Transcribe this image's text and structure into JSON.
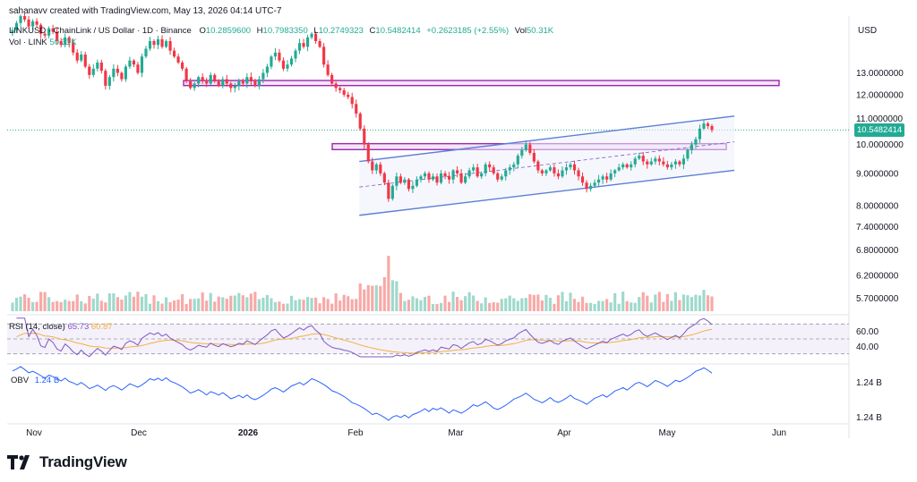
{
  "header": {
    "attribution": "sahanavv created with TradingView.com, May 13, 2026 04:14 UTC-7",
    "symbol": "LINKUSD · ChainLink / US Dollar · 1D · Binance",
    "ohlc": {
      "o_label": "O",
      "o": "10.2859600",
      "h_label": "H",
      "h": "10.7983350",
      "l_label": "L",
      "l": "10.2749323",
      "c_label": "C",
      "c": "10.5482414",
      "change": "+0.2623185 (+2.55%)",
      "vol_label": "Vol",
      "vol": "50.31K"
    },
    "vol_series": "Vol · LINK",
    "vol_series_value": "50.31K"
  },
  "currency": "USD",
  "last_price": "10.5482414",
  "brand": "TradingView",
  "colors": {
    "up": "#22ab94",
    "down": "#f23645",
    "vol_up": "#9fd9cc",
    "vol_down": "#f7a9a7",
    "rsi": "#7e57c2",
    "rsi_ma": "#f5b041",
    "obv": "#2962ff",
    "channel": "#5b7fd6",
    "zone": "#9c27b0"
  },
  "chart_data": {
    "type": "candlestick",
    "x_axis": {
      "ticks": [
        "Nov",
        "Dec",
        "2026",
        "Feb",
        "Mar",
        "Apr",
        "May",
        "Jun"
      ]
    },
    "price_axis": {
      "scale": "log",
      "ticks": [
        "13.0000000",
        "12.0000000",
        "11.0000000",
        "10.0000000",
        "9.0000000",
        "8.0000000",
        "7.4000000",
        "6.8000000",
        "6.2000000",
        "5.7000000"
      ],
      "ylim": [
        5.4,
        16.0
      ]
    },
    "candles_close": [
      15.2,
      15.6,
      16.0,
      15.8,
      15.4,
      15.7,
      15.5,
      15.0,
      14.9,
      15.3,
      15.1,
      14.6,
      14.4,
      14.8,
      14.5,
      14.0,
      13.6,
      13.9,
      13.3,
      12.9,
      13.2,
      13.5,
      13.1,
      12.4,
      12.8,
      13.2,
      13.0,
      12.7,
      13.3,
      13.6,
      13.4,
      13.0,
      13.8,
      14.2,
      14.6,
      14.4,
      14.7,
      14.3,
      14.6,
      14.1,
      13.8,
      13.5,
      13.2,
      12.6,
      12.3,
      12.5,
      12.8,
      12.6,
      12.5,
      12.9,
      12.6,
      12.4,
      12.7,
      12.5,
      12.3,
      12.4,
      12.6,
      12.5,
      12.8,
      12.6,
      12.4,
      12.7,
      13.0,
      13.3,
      13.8,
      14.0,
      13.6,
      13.2,
      13.4,
      13.7,
      14.1,
      14.5,
      14.3,
      14.8,
      15.0,
      14.6,
      14.3,
      13.4,
      12.9,
      12.5,
      12.3,
      12.2,
      12.0,
      11.9,
      11.6,
      11.2,
      10.6,
      10.0,
      9.4,
      9.1,
      9.3,
      9.0,
      8.7,
      8.2,
      8.6,
      8.9,
      8.7,
      8.8,
      8.5,
      8.6,
      8.8,
      8.9,
      9.0,
      8.8,
      8.9,
      8.7,
      9.0,
      8.9,
      8.8,
      9.1,
      9.0,
      8.7,
      8.9,
      9.1,
      9.2,
      8.9,
      9.0,
      9.3,
      9.2,
      9.0,
      8.8,
      8.9,
      9.1,
      9.2,
      9.3,
      9.6,
      9.8,
      10.0,
      9.7,
      9.4,
      9.1,
      9.0,
      9.1,
      9.2,
      9.0,
      8.9,
      9.1,
      9.2,
      9.3,
      9.1,
      8.9,
      8.7,
      8.5,
      8.6,
      8.7,
      8.8,
      8.9,
      8.8,
      9.0,
      9.1,
      9.2,
      9.3,
      9.2,
      9.3,
      9.5,
      9.6,
      9.4,
      9.3,
      9.4,
      9.5,
      9.4,
      9.3,
      9.2,
      9.3,
      9.4,
      9.3,
      9.5,
      9.8,
      10.0,
      10.2,
      10.6,
      10.8,
      10.7,
      10.55
    ],
    "zones": [
      {
        "low": 12.45,
        "high": 12.6
      },
      {
        "low": 9.85,
        "high": 10.0
      }
    ],
    "rsi": {
      "label": "RSI (14, close)",
      "value": "65.73",
      "ma_value": "60.87",
      "ticks": [
        "60.00",
        "40.00"
      ],
      "levels": [
        70,
        50,
        30
      ]
    },
    "obv": {
      "label": "OBV",
      "value": "1.24 B",
      "ticks": [
        "1.24 B",
        "1.24 B"
      ]
    }
  }
}
